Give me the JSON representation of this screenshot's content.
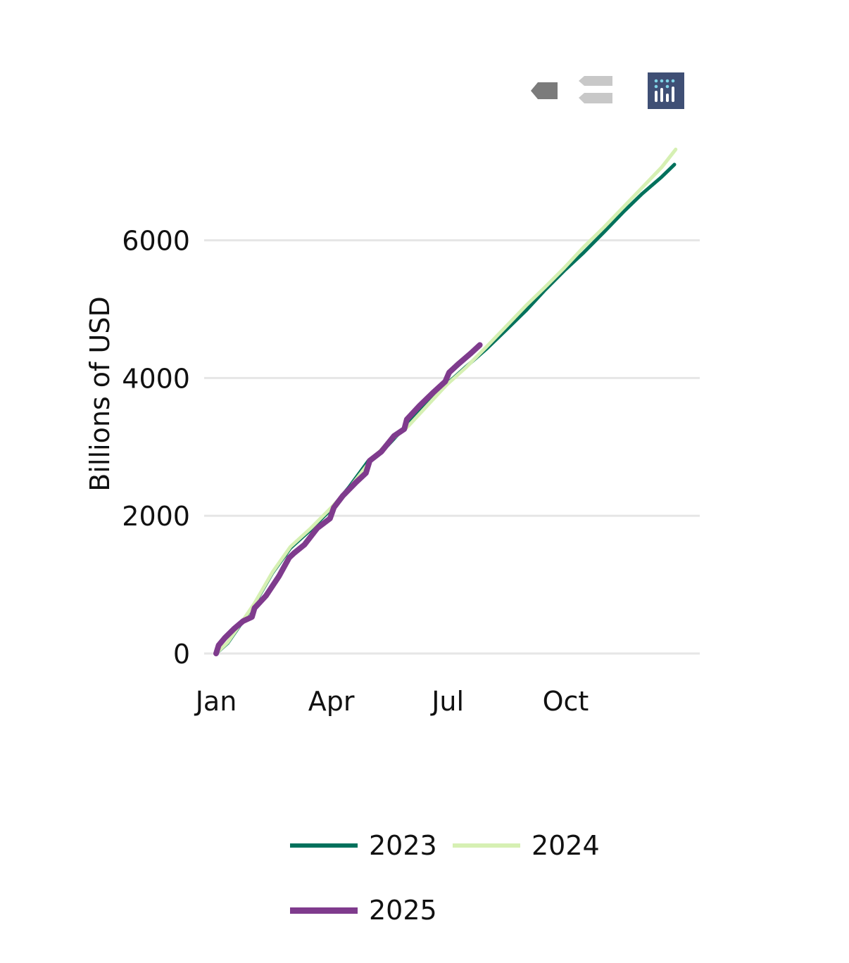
{
  "modebar": {
    "icons": [
      "compare-data-on-hover-icon",
      "show-closest-data-icon",
      "plotly-logo-icon"
    ]
  },
  "chart_data": {
    "type": "line",
    "title": "",
    "xlabel": "",
    "ylabel": "Billions of USD",
    "x_ticks": [
      "Jan",
      "Apr",
      "Jul",
      "Oct"
    ],
    "x_tick_day_of_year": [
      1,
      91,
      182,
      274
    ],
    "y_ticks": [
      0,
      2000,
      4000,
      6000
    ],
    "ylim": [
      0,
      7600
    ],
    "xlim_day_of_year": [
      1,
      365
    ],
    "grid": true,
    "legend_position": "bottom",
    "series": [
      {
        "name": "2023",
        "color": "#00715c",
        "day_of_year": [
          1,
          10,
          20,
          31,
          45,
          59,
          75,
          90,
          105,
          120,
          135,
          151,
          165,
          181,
          196,
          212,
          227,
          243,
          258,
          273,
          288,
          304,
          319,
          334,
          349,
          359
        ],
        "values": [
          0,
          150,
          420,
          720,
          1170,
          1530,
          1800,
          2080,
          2420,
          2800,
          3020,
          3340,
          3620,
          3910,
          4160,
          4420,
          4690,
          4980,
          5280,
          5560,
          5820,
          6120,
          6410,
          6680,
          6920,
          7100
        ]
      },
      {
        "name": "2024",
        "color": "#d6f0b3",
        "day_of_year": [
          1,
          10,
          20,
          31,
          45,
          59,
          75,
          90,
          105,
          120,
          135,
          151,
          165,
          181,
          196,
          212,
          227,
          243,
          258,
          273,
          288,
          304,
          319,
          334,
          349,
          360
        ],
        "values": [
          0,
          160,
          430,
          730,
          1180,
          1550,
          1820,
          2100,
          2400,
          2760,
          3060,
          3300,
          3580,
          3900,
          4150,
          4450,
          4740,
          5050,
          5320,
          5600,
          5900,
          6190,
          6480,
          6770,
          7060,
          7320
        ]
      },
      {
        "name": "2025",
        "color": "#7f3b8d",
        "day_of_year": [
          1,
          3,
          8,
          15,
          22,
          29,
          31,
          40,
          50,
          58,
          62,
          70,
          80,
          90,
          93,
          100,
          110,
          118,
          121,
          130,
          140,
          148,
          150,
          160,
          170,
          180,
          183,
          190,
          200,
          207
        ],
        "values": [
          0,
          120,
          230,
          360,
          470,
          530,
          660,
          840,
          1120,
          1390,
          1460,
          1580,
          1820,
          1960,
          2120,
          2290,
          2480,
          2620,
          2800,
          2930,
          3160,
          3260,
          3400,
          3600,
          3780,
          3950,
          4080,
          4200,
          4360,
          4480
        ]
      }
    ]
  }
}
